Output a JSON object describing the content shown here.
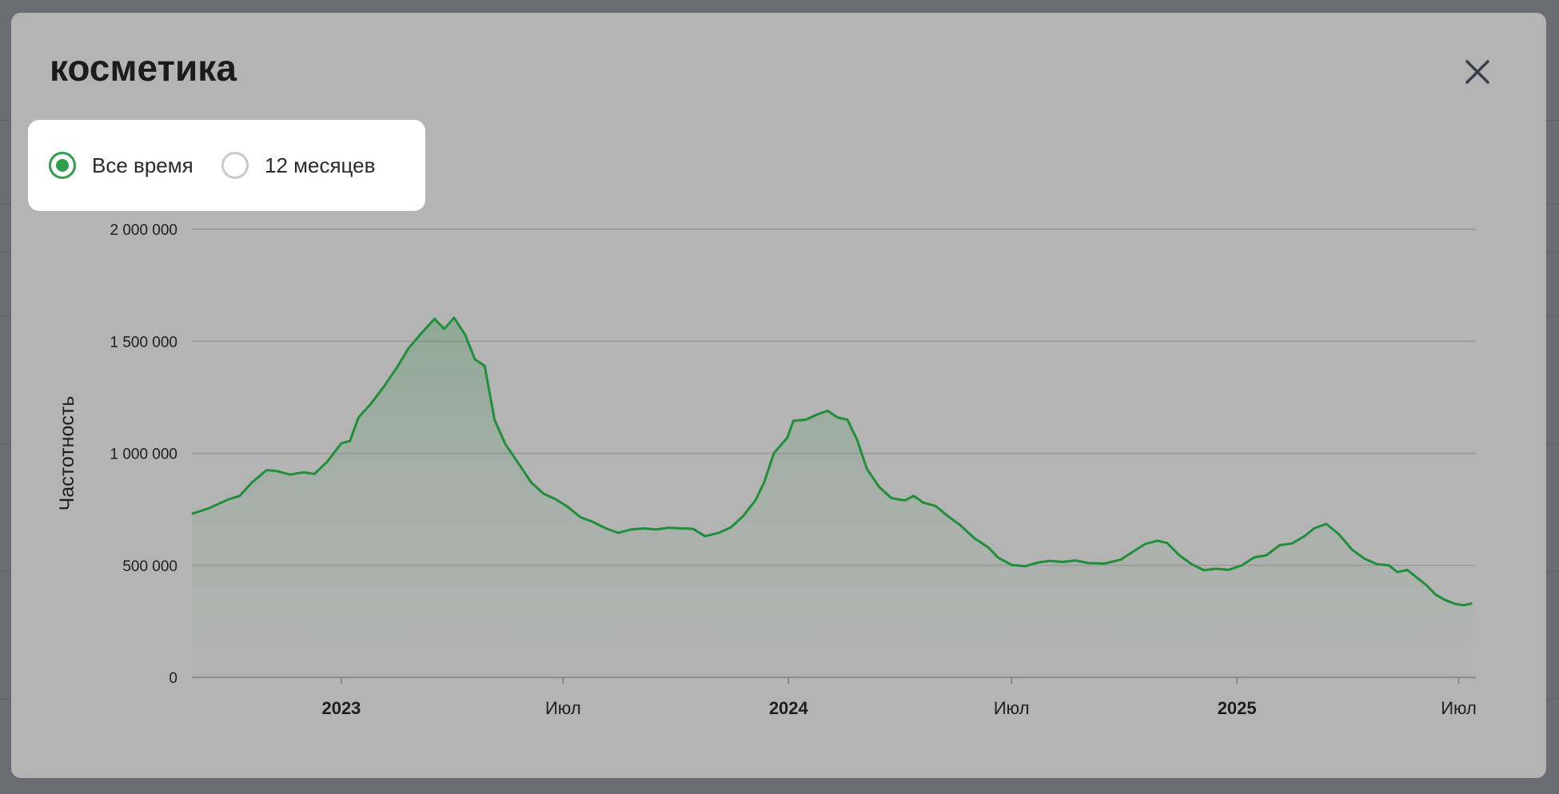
{
  "modal": {
    "title": "косметика",
    "close_icon": "close-icon"
  },
  "period": {
    "options": [
      {
        "label": "Все время",
        "selected": true
      },
      {
        "label": "12 месяцев",
        "selected": false
      }
    ],
    "accent": "#2e9e4b"
  },
  "chart_data": {
    "type": "area",
    "title": "",
    "xlabel": "",
    "ylabel": "Частотность",
    "ylim": [
      0,
      2000000
    ],
    "y_ticks": [
      {
        "value": 0,
        "label": "0"
      },
      {
        "value": 500000,
        "label": "500 000"
      },
      {
        "value": 1000000,
        "label": "1 000 000"
      },
      {
        "value": 1500000,
        "label": "1 500 000"
      },
      {
        "value": 2000000,
        "label": "2 000 000"
      }
    ],
    "x_range": [
      "2022-09-01",
      "2025-07-15"
    ],
    "x_ticks": [
      {
        "date": "2023-01-01",
        "label": "2023",
        "major": true
      },
      {
        "date": "2023-07-01",
        "label": "Июл",
        "major": false
      },
      {
        "date": "2024-01-01",
        "label": "2024",
        "major": true
      },
      {
        "date": "2024-07-01",
        "label": "Июл",
        "major": false
      },
      {
        "date": "2025-01-01",
        "label": "2025",
        "major": true
      },
      {
        "date": "2025-07-01",
        "label": "Июл",
        "major": false
      }
    ],
    "grid": true,
    "line_color": "#1f8f3a",
    "series": [
      {
        "name": "",
        "points": [
          [
            "2022-09-01",
            730000
          ],
          [
            "2022-09-15",
            755000
          ],
          [
            "2022-10-01",
            795000
          ],
          [
            "2022-10-10",
            810000
          ],
          [
            "2022-10-20",
            870000
          ],
          [
            "2022-11-01",
            925000
          ],
          [
            "2022-11-10",
            920000
          ],
          [
            "2022-11-20",
            905000
          ],
          [
            "2022-12-01",
            915000
          ],
          [
            "2022-12-10",
            908000
          ],
          [
            "2022-12-20",
            960000
          ],
          [
            "2023-01-01",
            1045000
          ],
          [
            "2023-01-08",
            1055000
          ],
          [
            "2023-01-15",
            1160000
          ],
          [
            "2023-01-25",
            1220000
          ],
          [
            "2023-02-05",
            1300000
          ],
          [
            "2023-02-15",
            1380000
          ],
          [
            "2023-02-25",
            1470000
          ],
          [
            "2023-03-08",
            1540000
          ],
          [
            "2023-03-18",
            1600000
          ],
          [
            "2023-03-26",
            1555000
          ],
          [
            "2023-04-03",
            1605000
          ],
          [
            "2023-04-12",
            1530000
          ],
          [
            "2023-04-20",
            1420000
          ],
          [
            "2023-04-28",
            1390000
          ],
          [
            "2023-05-06",
            1150000
          ],
          [
            "2023-05-15",
            1040000
          ],
          [
            "2023-05-25",
            960000
          ],
          [
            "2023-06-05",
            870000
          ],
          [
            "2023-06-15",
            820000
          ],
          [
            "2023-06-25",
            795000
          ],
          [
            "2023-07-05",
            760000
          ],
          [
            "2023-07-15",
            715000
          ],
          [
            "2023-07-25",
            695000
          ],
          [
            "2023-08-05",
            665000
          ],
          [
            "2023-08-15",
            645000
          ],
          [
            "2023-08-25",
            660000
          ],
          [
            "2023-09-05",
            665000
          ],
          [
            "2023-09-15",
            660000
          ],
          [
            "2023-09-25",
            668000
          ],
          [
            "2023-10-05",
            665000
          ],
          [
            "2023-10-15",
            663000
          ],
          [
            "2023-10-25",
            630000
          ],
          [
            "2023-11-05",
            645000
          ],
          [
            "2023-11-15",
            670000
          ],
          [
            "2023-11-25",
            720000
          ],
          [
            "2023-12-05",
            790000
          ],
          [
            "2023-12-12",
            870000
          ],
          [
            "2023-12-20",
            1000000
          ],
          [
            "2023-12-31",
            1070000
          ],
          [
            "2024-01-05",
            1145000
          ],
          [
            "2024-01-15",
            1150000
          ],
          [
            "2024-01-25",
            1175000
          ],
          [
            "2024-02-02",
            1190000
          ],
          [
            "2024-02-10",
            1160000
          ],
          [
            "2024-02-18",
            1150000
          ],
          [
            "2024-02-26",
            1060000
          ],
          [
            "2024-03-05",
            930000
          ],
          [
            "2024-03-15",
            850000
          ],
          [
            "2024-03-25",
            800000
          ],
          [
            "2024-04-05",
            790000
          ],
          [
            "2024-04-12",
            810000
          ],
          [
            "2024-04-20",
            780000
          ],
          [
            "2024-04-30",
            765000
          ],
          [
            "2024-05-10",
            720000
          ],
          [
            "2024-05-20",
            680000
          ],
          [
            "2024-06-01",
            620000
          ],
          [
            "2024-06-12",
            580000
          ],
          [
            "2024-06-20",
            535000
          ],
          [
            "2024-07-01",
            502000
          ],
          [
            "2024-07-12",
            496000
          ],
          [
            "2024-07-22",
            512000
          ],
          [
            "2024-08-01",
            520000
          ],
          [
            "2024-08-12",
            515000
          ],
          [
            "2024-08-22",
            522000
          ],
          [
            "2024-09-02",
            510000
          ],
          [
            "2024-09-15",
            508000
          ],
          [
            "2024-09-28",
            525000
          ],
          [
            "2024-10-08",
            560000
          ],
          [
            "2024-10-18",
            595000
          ],
          [
            "2024-10-28",
            610000
          ],
          [
            "2024-11-05",
            600000
          ],
          [
            "2024-11-15",
            545000
          ],
          [
            "2024-11-25",
            505000
          ],
          [
            "2024-12-05",
            478000
          ],
          [
            "2024-12-15",
            485000
          ],
          [
            "2024-12-25",
            480000
          ],
          [
            "2025-01-05",
            500000
          ],
          [
            "2025-01-15",
            535000
          ],
          [
            "2025-01-25",
            545000
          ],
          [
            "2025-02-05",
            590000
          ],
          [
            "2025-02-15",
            598000
          ],
          [
            "2025-02-25",
            630000
          ],
          [
            "2025-03-05",
            665000
          ],
          [
            "2025-03-15",
            685000
          ],
          [
            "2025-03-25",
            640000
          ],
          [
            "2025-04-05",
            570000
          ],
          [
            "2025-04-15",
            530000
          ],
          [
            "2025-04-25",
            505000
          ],
          [
            "2025-05-05",
            500000
          ],
          [
            "2025-05-12",
            470000
          ],
          [
            "2025-05-20",
            480000
          ],
          [
            "2025-05-28",
            445000
          ],
          [
            "2025-06-05",
            410000
          ],
          [
            "2025-06-12",
            370000
          ],
          [
            "2025-06-20",
            345000
          ],
          [
            "2025-06-28",
            328000
          ],
          [
            "2025-07-05",
            322000
          ],
          [
            "2025-07-12",
            330000
          ]
        ]
      }
    ]
  }
}
